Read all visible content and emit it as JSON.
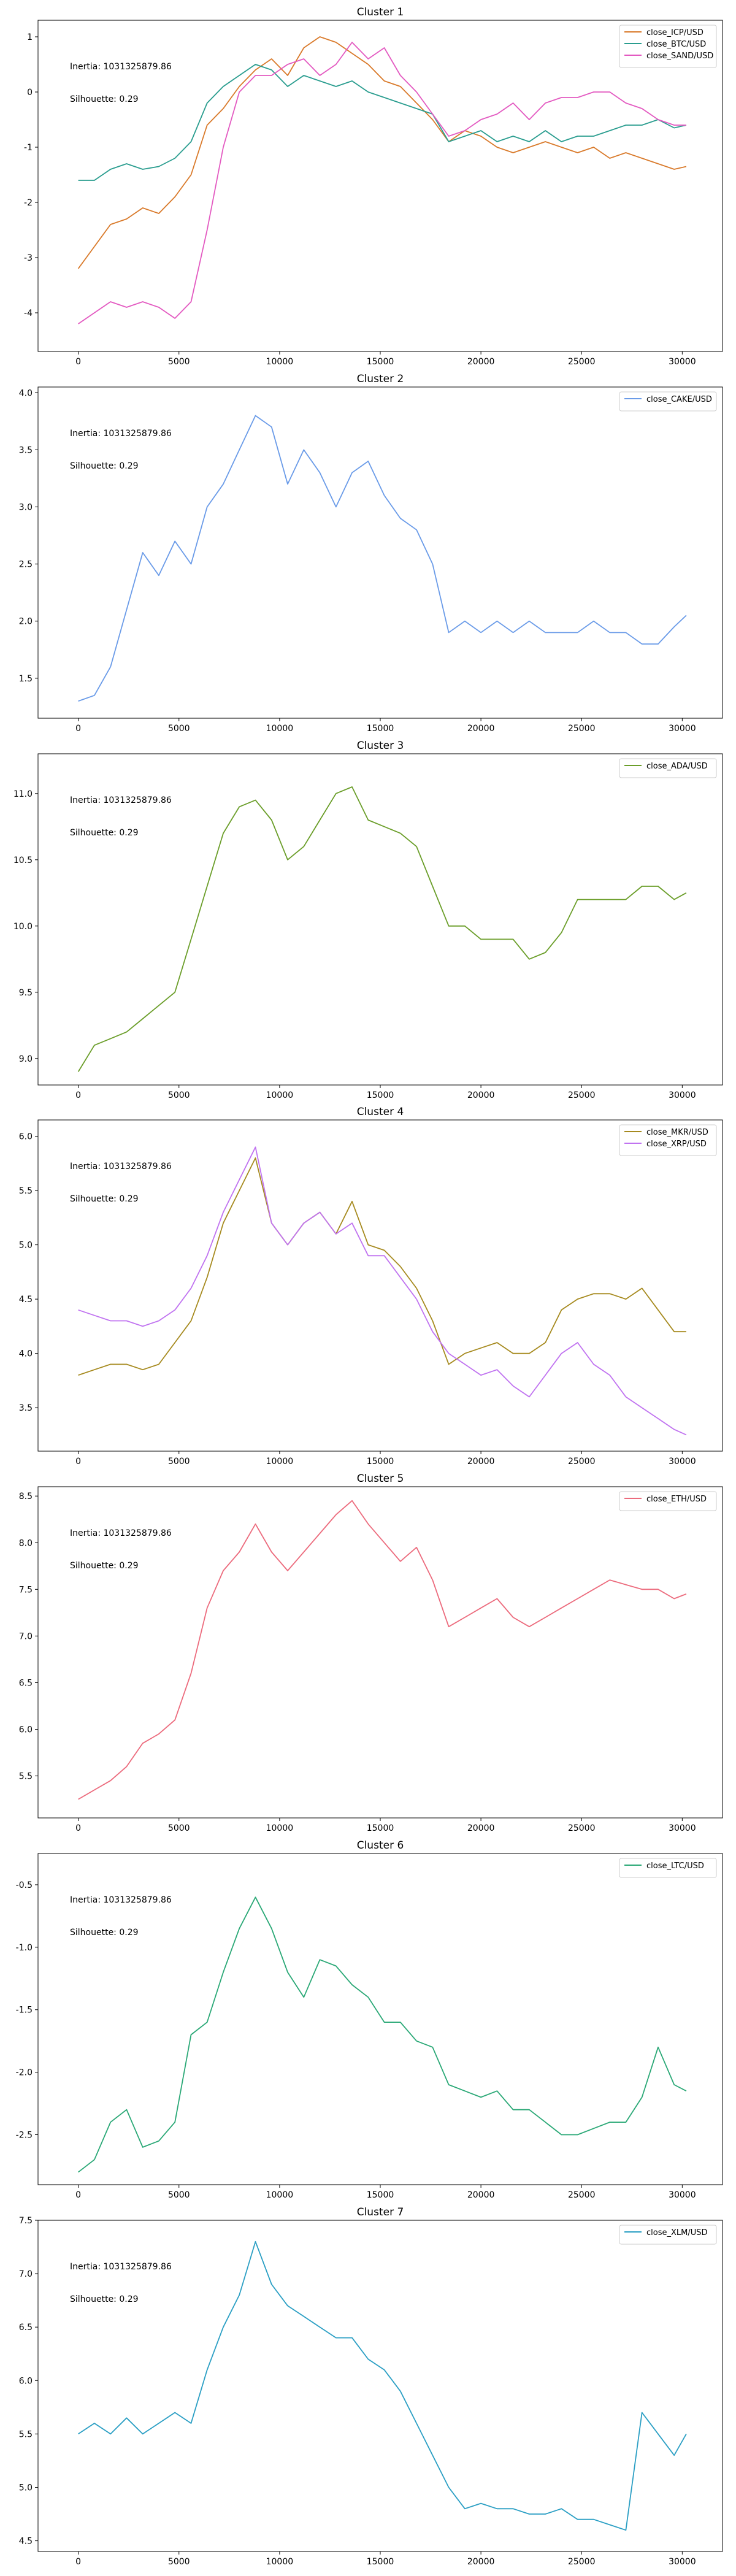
{
  "figure": {
    "annotations": {
      "inertia": "Inertia: 1031325879.86",
      "silhouette": "Silhouette: 0.29"
    }
  },
  "chart_data": [
    {
      "type": "line",
      "title": "Cluster 1",
      "xlim": [
        -2000,
        32000
      ],
      "ylim": [
        -4.7,
        1.3
      ],
      "xticks": [
        0,
        5000,
        10000,
        15000,
        20000,
        25000,
        30000
      ],
      "yticks": [
        -4,
        -3,
        -2,
        -1,
        0,
        1
      ],
      "legend_position": "top-right",
      "series": [
        {
          "name": "close_ICP/USD",
          "color": "#d97a2b",
          "x": [
            0,
            800,
            1600,
            2400,
            3200,
            4000,
            4800,
            5600,
            6400,
            7200,
            8000,
            8800,
            9600,
            10400,
            11200,
            12000,
            12800,
            13600,
            14400,
            15200,
            16000,
            16800,
            17600,
            18400,
            19200,
            20000,
            20800,
            21600,
            22400,
            23200,
            24000,
            24800,
            25600,
            26400,
            27200,
            28000,
            28800,
            29600,
            30200
          ],
          "y": [
            -3.2,
            -2.8,
            -2.4,
            -2.3,
            -2.1,
            -2.2,
            -1.9,
            -1.5,
            -0.6,
            -0.3,
            0.1,
            0.4,
            0.6,
            0.3,
            0.8,
            1.0,
            0.9,
            0.7,
            0.5,
            0.2,
            0.1,
            -0.2,
            -0.5,
            -0.9,
            -0.7,
            -0.8,
            -1.0,
            -1.1,
            -1.0,
            -0.9,
            -1.0,
            -1.1,
            -1.0,
            -1.2,
            -1.1,
            -1.2,
            -1.3,
            -1.4,
            -1.35
          ]
        },
        {
          "name": "close_BTC/USD",
          "color": "#2a9d8f",
          "x": [
            0,
            800,
            1600,
            2400,
            3200,
            4000,
            4800,
            5600,
            6400,
            7200,
            8000,
            8800,
            9600,
            10400,
            11200,
            12000,
            12800,
            13600,
            14400,
            15200,
            16000,
            16800,
            17600,
            18400,
            19200,
            20000,
            20800,
            21600,
            22400,
            23200,
            24000,
            24800,
            25600,
            26400,
            27200,
            28000,
            28800,
            29600,
            30200
          ],
          "y": [
            -1.6,
            -1.6,
            -1.4,
            -1.3,
            -1.4,
            -1.35,
            -1.2,
            -0.9,
            -0.2,
            0.1,
            0.3,
            0.5,
            0.4,
            0.1,
            0.3,
            0.2,
            0.1,
            0.2,
            0.0,
            -0.1,
            -0.2,
            -0.3,
            -0.4,
            -0.9,
            -0.8,
            -0.7,
            -0.9,
            -0.8,
            -0.9,
            -0.7,
            -0.9,
            -0.8,
            -0.8,
            -0.7,
            -0.6,
            -0.6,
            -0.5,
            -0.65,
            -0.6
          ]
        },
        {
          "name": "close_SAND/USD",
          "color": "#e35ac1",
          "x": [
            0,
            800,
            1600,
            2400,
            3200,
            4000,
            4800,
            5600,
            6400,
            7200,
            8000,
            8800,
            9600,
            10400,
            11200,
            12000,
            12800,
            13600,
            14400,
            15200,
            16000,
            16800,
            17600,
            18400,
            19200,
            20000,
            20800,
            21600,
            22400,
            23200,
            24000,
            24800,
            25600,
            26400,
            27200,
            28000,
            28800,
            29600,
            30200
          ],
          "y": [
            -4.2,
            -4.0,
            -3.8,
            -3.9,
            -3.8,
            -3.9,
            -4.1,
            -3.8,
            -2.5,
            -1.0,
            0.0,
            0.3,
            0.3,
            0.5,
            0.6,
            0.3,
            0.5,
            0.9,
            0.6,
            0.8,
            0.3,
            0.0,
            -0.4,
            -0.8,
            -0.7,
            -0.5,
            -0.4,
            -0.2,
            -0.5,
            -0.2,
            -0.1,
            -0.1,
            0.0,
            0.0,
            -0.2,
            -0.3,
            -0.5,
            -0.6,
            -0.6
          ]
        }
      ]
    },
    {
      "type": "line",
      "title": "Cluster 2",
      "xlim": [
        -2000,
        32000
      ],
      "ylim": [
        1.15,
        4.05
      ],
      "xticks": [
        0,
        5000,
        10000,
        15000,
        20000,
        25000,
        30000
      ],
      "yticks": [
        1.5,
        2.0,
        2.5,
        3.0,
        3.5,
        4.0
      ],
      "legend_position": "top-right",
      "series": [
        {
          "name": "close_CAKE/USD",
          "color": "#6a9be8",
          "x": [
            0,
            800,
            1600,
            2400,
            3200,
            4000,
            4800,
            5600,
            6400,
            7200,
            8000,
            8800,
            9600,
            10400,
            11200,
            12000,
            12800,
            13600,
            14400,
            15200,
            16000,
            16800,
            17600,
            18400,
            19200,
            20000,
            20800,
            21600,
            22400,
            23200,
            24000,
            24800,
            25600,
            26400,
            27200,
            28000,
            28800,
            29600,
            30200
          ],
          "y": [
            1.3,
            1.35,
            1.6,
            2.1,
            2.6,
            2.4,
            2.7,
            2.5,
            3.0,
            3.2,
            3.5,
            3.8,
            3.7,
            3.2,
            3.5,
            3.3,
            3.0,
            3.3,
            3.4,
            3.1,
            2.9,
            2.8,
            2.5,
            1.9,
            2.0,
            1.9,
            2.0,
            1.9,
            2.0,
            1.9,
            1.9,
            1.9,
            2.0,
            1.9,
            1.9,
            1.8,
            1.8,
            1.95,
            2.05
          ]
        }
      ]
    },
    {
      "type": "line",
      "title": "Cluster 3",
      "xlim": [
        -2000,
        32000
      ],
      "ylim": [
        8.8,
        11.3
      ],
      "xticks": [
        0,
        5000,
        10000,
        15000,
        20000,
        25000,
        30000
      ],
      "yticks": [
        9.0,
        9.5,
        10.0,
        10.5,
        11.0
      ],
      "legend_position": "top-right",
      "series": [
        {
          "name": "close_ADA/USD",
          "color": "#6b9e2a",
          "x": [
            0,
            800,
            1600,
            2400,
            3200,
            4000,
            4800,
            5600,
            6400,
            7200,
            8000,
            8800,
            9600,
            10400,
            11200,
            12000,
            12800,
            13600,
            14400,
            15200,
            16000,
            16800,
            17600,
            18400,
            19200,
            20000,
            20800,
            21600,
            22400,
            23200,
            24000,
            24800,
            25600,
            26400,
            27200,
            28000,
            28800,
            29600,
            30200
          ],
          "y": [
            8.9,
            9.1,
            9.15,
            9.2,
            9.3,
            9.4,
            9.5,
            9.9,
            10.3,
            10.7,
            10.9,
            10.95,
            10.8,
            10.5,
            10.6,
            10.8,
            11.0,
            11.05,
            10.8,
            10.75,
            10.7,
            10.6,
            10.3,
            10.0,
            10.0,
            9.9,
            9.9,
            9.9,
            9.75,
            9.8,
            9.95,
            10.2,
            10.2,
            10.2,
            10.2,
            10.3,
            10.3,
            10.2,
            10.25
          ]
        }
      ]
    },
    {
      "type": "line",
      "title": "Cluster 4",
      "xlim": [
        -2000,
        32000
      ],
      "ylim": [
        3.1,
        6.15
      ],
      "xticks": [
        0,
        5000,
        10000,
        15000,
        20000,
        25000,
        30000
      ],
      "yticks": [
        3.5,
        4.0,
        4.5,
        5.0,
        5.5,
        6.0
      ],
      "legend_position": "top-right",
      "series": [
        {
          "name": "close_MKR/USD",
          "color": "#a68a1f",
          "x": [
            0,
            800,
            1600,
            2400,
            3200,
            4000,
            4800,
            5600,
            6400,
            7200,
            8000,
            8800,
            9600,
            10400,
            11200,
            12000,
            12800,
            13600,
            14400,
            15200,
            16000,
            16800,
            17600,
            18400,
            19200,
            20000,
            20800,
            21600,
            22400,
            23200,
            24000,
            24800,
            25600,
            26400,
            27200,
            28000,
            28800,
            29600,
            30200
          ],
          "y": [
            3.8,
            3.85,
            3.9,
            3.9,
            3.85,
            3.9,
            4.1,
            4.3,
            4.7,
            5.2,
            5.5,
            5.8,
            5.2,
            5.0,
            5.2,
            5.3,
            5.1,
            5.4,
            5.0,
            4.95,
            4.8,
            4.6,
            4.3,
            3.9,
            4.0,
            4.05,
            4.1,
            4.0,
            4.0,
            4.1,
            4.4,
            4.5,
            4.55,
            4.55,
            4.5,
            4.6,
            4.4,
            4.2,
            4.2
          ]
        },
        {
          "name": "close_XRP/USD",
          "color": "#c073f0",
          "x": [
            0,
            800,
            1600,
            2400,
            3200,
            4000,
            4800,
            5600,
            6400,
            7200,
            8000,
            8800,
            9600,
            10400,
            11200,
            12000,
            12800,
            13600,
            14400,
            15200,
            16000,
            16800,
            17600,
            18400,
            19200,
            20000,
            20800,
            21600,
            22400,
            23200,
            24000,
            24800,
            25600,
            26400,
            27200,
            28000,
            28800,
            29600,
            30200
          ],
          "y": [
            4.4,
            4.35,
            4.3,
            4.3,
            4.25,
            4.3,
            4.4,
            4.6,
            4.9,
            5.3,
            5.6,
            5.9,
            5.2,
            5.0,
            5.2,
            5.3,
            5.1,
            5.2,
            4.9,
            4.9,
            4.7,
            4.5,
            4.2,
            4.0,
            3.9,
            3.8,
            3.85,
            3.7,
            3.6,
            3.8,
            4.0,
            4.1,
            3.9,
            3.8,
            3.6,
            3.5,
            3.4,
            3.3,
            3.25
          ]
        }
      ]
    },
    {
      "type": "line",
      "title": "Cluster 5",
      "xlim": [
        -2000,
        32000
      ],
      "ylim": [
        5.05,
        8.6
      ],
      "xticks": [
        0,
        5000,
        10000,
        15000,
        20000,
        25000,
        30000
      ],
      "yticks": [
        5.5,
        6.0,
        6.5,
        7.0,
        7.5,
        8.0,
        8.5
      ],
      "legend_position": "top-right",
      "series": [
        {
          "name": "close_ETH/USD",
          "color": "#ec6b7d",
          "x": [
            0,
            800,
            1600,
            2400,
            3200,
            4000,
            4800,
            5600,
            6400,
            7200,
            8000,
            8800,
            9600,
            10400,
            11200,
            12000,
            12800,
            13600,
            14400,
            15200,
            16000,
            16800,
            17600,
            18400,
            19200,
            20000,
            20800,
            21600,
            22400,
            23200,
            24000,
            24800,
            25600,
            26400,
            27200,
            28000,
            28800,
            29600,
            30200
          ],
          "y": [
            5.25,
            5.35,
            5.45,
            5.6,
            5.85,
            5.95,
            6.1,
            6.6,
            7.3,
            7.7,
            7.9,
            8.2,
            7.9,
            7.7,
            7.9,
            8.1,
            8.3,
            8.45,
            8.2,
            8.0,
            7.8,
            7.95,
            7.6,
            7.1,
            7.2,
            7.3,
            7.4,
            7.2,
            7.1,
            7.2,
            7.3,
            7.4,
            7.5,
            7.6,
            7.55,
            7.5,
            7.5,
            7.4,
            7.45
          ]
        }
      ]
    },
    {
      "type": "line",
      "title": "Cluster 6",
      "xlim": [
        -2000,
        32000
      ],
      "ylim": [
        -2.9,
        -0.25
      ],
      "xticks": [
        0,
        5000,
        10000,
        15000,
        20000,
        25000,
        30000
      ],
      "yticks": [
        -2.5,
        -2.0,
        -1.5,
        -1.0,
        -0.5
      ],
      "legend_position": "top-right",
      "series": [
        {
          "name": "close_LTC/USD",
          "color": "#2aa876",
          "x": [
            0,
            800,
            1600,
            2400,
            3200,
            4000,
            4800,
            5600,
            6400,
            7200,
            8000,
            8800,
            9600,
            10400,
            11200,
            12000,
            12800,
            13600,
            14400,
            15200,
            16000,
            16800,
            17600,
            18400,
            19200,
            20000,
            20800,
            21600,
            22400,
            23200,
            24000,
            24800,
            25600,
            26400,
            27200,
            28000,
            28800,
            29600,
            30200
          ],
          "y": [
            -2.8,
            -2.7,
            -2.4,
            -2.3,
            -2.6,
            -2.55,
            -2.4,
            -1.7,
            -1.6,
            -1.2,
            -0.85,
            -0.6,
            -0.85,
            -1.2,
            -1.4,
            -1.1,
            -1.15,
            -1.3,
            -1.4,
            -1.6,
            -1.6,
            -1.75,
            -1.8,
            -2.1,
            -2.15,
            -2.2,
            -2.15,
            -2.3,
            -2.3,
            -2.4,
            -2.5,
            -2.5,
            -2.45,
            -2.4,
            -2.4,
            -2.2,
            -1.8,
            -2.1,
            -2.15
          ]
        }
      ]
    },
    {
      "type": "line",
      "title": "Cluster 7",
      "xlim": [
        -2000,
        32000
      ],
      "ylim": [
        4.4,
        7.5
      ],
      "xticks": [
        0,
        5000,
        10000,
        15000,
        20000,
        25000,
        30000
      ],
      "yticks": [
        4.5,
        5.0,
        5.5,
        6.0,
        6.5,
        7.0,
        7.5
      ],
      "legend_position": "top-right",
      "series": [
        {
          "name": "close_XLM/USD",
          "color": "#2b9fc4",
          "x": [
            0,
            800,
            1600,
            2400,
            3200,
            4000,
            4800,
            5600,
            6400,
            7200,
            8000,
            8800,
            9600,
            10400,
            11200,
            12000,
            12800,
            13600,
            14400,
            15200,
            16000,
            16800,
            17600,
            18400,
            19200,
            20000,
            20800,
            21600,
            22400,
            23200,
            24000,
            24800,
            25600,
            26400,
            27200,
            28000,
            28800,
            29600,
            30200
          ],
          "y": [
            5.5,
            5.6,
            5.5,
            5.65,
            5.5,
            5.6,
            5.7,
            5.6,
            6.1,
            6.5,
            6.8,
            7.3,
            6.9,
            6.7,
            6.6,
            6.5,
            6.4,
            6.4,
            6.2,
            6.1,
            5.9,
            5.6,
            5.3,
            5.0,
            4.8,
            4.85,
            4.8,
            4.8,
            4.75,
            4.75,
            4.8,
            4.7,
            4.7,
            4.65,
            4.6,
            5.7,
            5.5,
            5.3,
            5.5
          ]
        }
      ]
    }
  ]
}
